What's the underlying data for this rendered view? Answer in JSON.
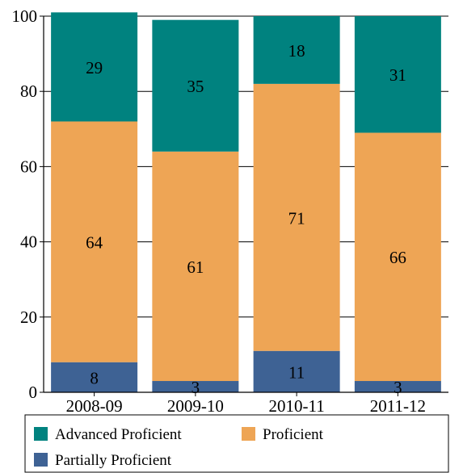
{
  "chart_data": {
    "type": "bar",
    "stacked": true,
    "categories": [
      "2008-09",
      "2009-10",
      "2010-11",
      "2011-12"
    ],
    "series": [
      {
        "name": "Partially Proficient",
        "values": [
          8,
          3,
          11,
          3
        ],
        "labels": [
          "8",
          "3",
          "11",
          "3"
        ],
        "color": "#3e6294"
      },
      {
        "name": "Proficient",
        "values": [
          64,
          61,
          71,
          66
        ],
        "labels": [
          "64",
          "61",
          "71",
          "66"
        ],
        "color": "#eea555"
      },
      {
        "name": "Advanced Proficient",
        "values": [
          29,
          35,
          18,
          31
        ],
        "labels": [
          "29",
          "35",
          "18",
          "31"
        ],
        "color": "#00827f"
      }
    ],
    "ylim": [
      0,
      100
    ],
    "yticks": [
      "0",
      "20",
      "40",
      "60",
      "80",
      "100"
    ],
    "legend_order": [
      "Advanced Proficient",
      "Proficient",
      "Partially Proficient"
    ],
    "legend_position": "bottom",
    "grid": true,
    "title": "",
    "xlabel": "",
    "ylabel": ""
  }
}
